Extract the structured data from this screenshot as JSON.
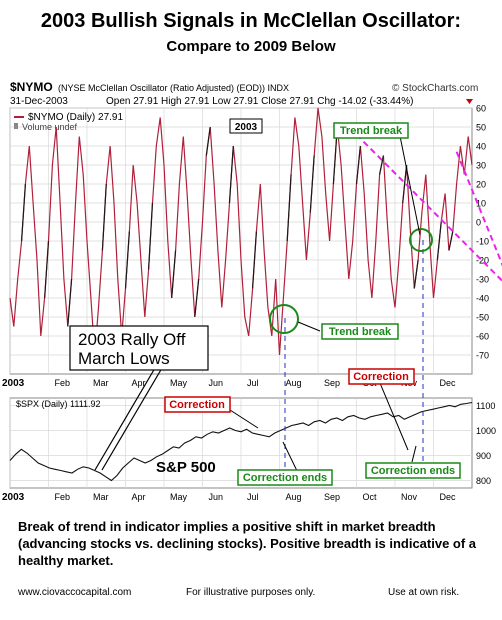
{
  "page": {
    "title": "2003 Bullish Signals in McClellan Oscillator:",
    "subtitle": "Compare to 2009 Below",
    "body": "Break of trend in indicator implies a positive shift in market breadth (advancing stocks vs. declining stocks).  Positive breadth is indicative of a healthy market.",
    "footer_left": "www.ciovaccocapital.com",
    "footer_center": "For illustrative purposes only.",
    "footer_right": "Use at own risk."
  },
  "header": {
    "symbol": "$NYMO",
    "description": "(NYSE McClellan Oscillator (Ratio Adjusted) (EOD)) INDX",
    "brand": "© StockCharts.com",
    "date": "31-Dec-2003",
    "ohlc": "Open 27.91  High 27.91  Low 27.91  Close 27.91  Chg -14.02 (-33.44%)",
    "legend_line": "$NYMO (Daily) 27.91",
    "legend_volume": "Volume undef",
    "year_badge": "2003"
  },
  "annotations": {
    "trend_break_top": "Trend break",
    "trend_break_mid": "Trend break",
    "rally_line1": "2003 Rally Off",
    "rally_line2": "March Lows",
    "correction_1": "Correction",
    "correction_2": "Correction",
    "correction_ends_1": "Correction ends",
    "correction_ends_2": "Correction ends",
    "sp500": "S&P 500",
    "spx_legend": "$SPX (Daily) 1111.92"
  },
  "colors": {
    "oscillator_red": "#b0203a",
    "oscillator_black": "#1a1a1a",
    "trend_magenta": "#ee22ee",
    "circle_green": "#1a8a1a",
    "correction_red": "#cc0000",
    "grid": "#d8d8d8",
    "vline_blue": "#2233bb"
  },
  "chart_data": [
    {
      "type": "line",
      "series": [
        {
          "name": "$NYMO (Daily)",
          "values": [
            -40,
            -55,
            -30,
            -10,
            20,
            40,
            10,
            -20,
            -60,
            -40,
            -10,
            30,
            50,
            10,
            -30,
            -55,
            -30,
            10,
            45,
            25,
            -10,
            -40,
            -70,
            -45,
            -15,
            20,
            40,
            10,
            -30,
            -60,
            -35,
            -5,
            30,
            10,
            -20,
            -50,
            -25,
            10,
            40,
            55,
            30,
            -10,
            -40,
            -15,
            20,
            45,
            15,
            -20,
            -50,
            -30,
            0,
            35,
            50,
            20,
            -15,
            -45,
            -20,
            10,
            40,
            20,
            -20,
            -50,
            -60,
            -35,
            -5,
            20,
            -15,
            -45,
            -60,
            -30,
            -70,
            -40,
            -10,
            25,
            55,
            40,
            10,
            -20,
            5,
            35,
            60,
            45,
            15,
            -10,
            20,
            50,
            30,
            0,
            -30,
            -10,
            20,
            40,
            15,
            -20,
            -40,
            -10,
            25,
            35,
            0,
            -30,
            -45,
            -20,
            10,
            30,
            -5,
            -35,
            -20,
            5,
            25,
            -10,
            -40,
            -20,
            0,
            15,
            -15,
            -5,
            20,
            40,
            25,
            45,
            30
          ]
        }
      ],
      "ylim": [
        -80,
        60
      ],
      "yticks": [
        -70,
        -60,
        -50,
        -40,
        -30,
        -20,
        -10,
        0,
        10,
        20,
        30,
        40,
        50,
        60
      ],
      "xticks": [
        "2003",
        "Feb",
        "Mar",
        "Apr",
        "May",
        "Jun",
        "Jul",
        "Aug",
        "Sep",
        "Oct",
        "Nov",
        "Dec"
      ],
      "trend_lines": [
        {
          "x": [
            9,
            15
          ],
          "y": [
            46,
            -76
          ]
        },
        {
          "x": [
            11.6,
            12.8
          ],
          "y": [
            37,
            -23
          ]
        }
      ],
      "last_value": 27.91
    },
    {
      "type": "line",
      "series": [
        {
          "name": "$SPX (Daily)",
          "values": [
            880,
            905,
            925,
            910,
            890,
            870,
            860,
            850,
            845,
            840,
            835,
            830,
            845,
            855,
            850,
            840,
            830,
            815,
            800,
            820,
            850,
            870,
            890,
            880,
            870,
            880,
            895,
            905,
            920,
            935,
            930,
            950,
            960,
            975,
            970,
            985,
            995,
            990,
            1000,
            1010,
            1000,
            995,
            1005,
            990,
            985,
            980,
            975,
            990,
            1000,
            1010,
            1020,
            1025,
            1030,
            1020,
            1035,
            1040,
            1030,
            1045,
            1050,
            1040,
            1055,
            1060,
            1050,
            1045,
            1055,
            1060,
            1065,
            1070,
            1055,
            1060,
            1045,
            1055,
            1065,
            1075,
            1080,
            1085,
            1090,
            1095,
            1100,
            1095,
            1105,
            1108,
            1111.92
          ]
        }
      ],
      "ylim": [
        770,
        1130
      ],
      "yticks": [
        800,
        900,
        1000,
        1100
      ],
      "xticks": [
        "2003",
        "Feb",
        "Mar",
        "Apr",
        "May",
        "Jun",
        "Jul",
        "Aug",
        "Sep",
        "Oct",
        "Nov",
        "Dec"
      ],
      "last_value": 1111.92
    }
  ]
}
